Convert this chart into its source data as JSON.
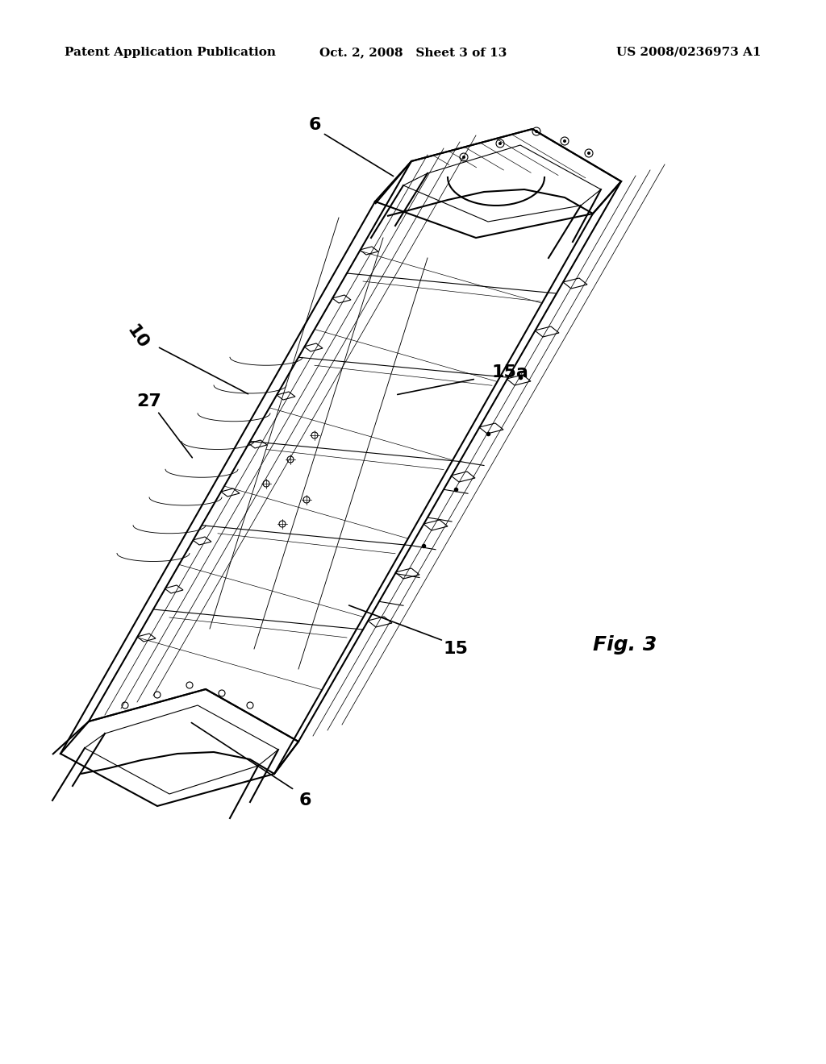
{
  "background_color": "#ffffff",
  "header_left": "Patent Application Publication",
  "header_center": "Oct. 2, 2008   Sheet 3 of 13",
  "header_right": "US 2008/0236973 A1",
  "figure_label": "Fig. 3",
  "labels": {
    "6_top": "6",
    "6_bottom": "6",
    "10": "10",
    "15a": "15a",
    "15": "15",
    "27": "27"
  },
  "header_fontsize": 11,
  "label_fontsize": 16,
  "fig_label_fontsize": 18
}
